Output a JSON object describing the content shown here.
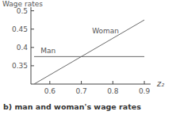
{
  "chart_data": {
    "type": "line",
    "title": "b) man and woman's wage rates",
    "x_label": "z₂",
    "y_label": "Wage rates",
    "x": [
      0.55,
      0.9
    ],
    "xlim": [
      0.54,
      0.92
    ],
    "ylim": [
      0.3,
      0.51
    ],
    "xticks": [
      0.6,
      0.7,
      0.8,
      0.9
    ],
    "yticks": [
      0.35,
      0.4,
      0.45,
      0.5
    ],
    "grid": false,
    "series": [
      {
        "name": "Man",
        "color": "#6a6a6a",
        "values": [
          0.375,
          0.375
        ]
      },
      {
        "name": "Woman",
        "color": "#6a6a6a",
        "values": [
          0.3,
          0.475
        ]
      }
    ]
  }
}
